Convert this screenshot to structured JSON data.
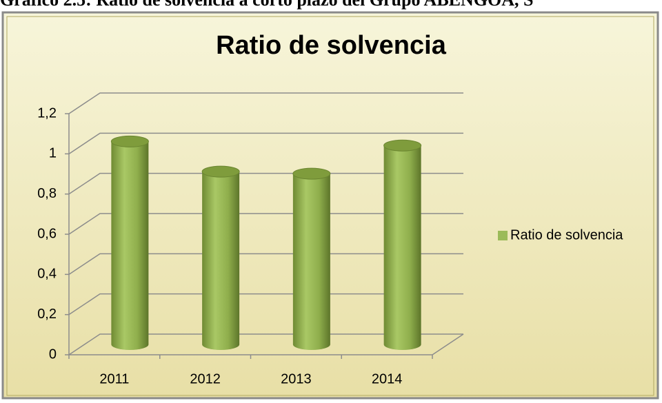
{
  "caption": "Gráfico 2.5: Ratio de solvencia a corto plazo del Grupo ABENGOA, S",
  "chart_data": {
    "type": "bar3d",
    "title": "Ratio de solvencia",
    "categories": [
      "2011",
      "2012",
      "2013",
      "2014"
    ],
    "series": [
      {
        "name": "Ratio de solvencia",
        "color": "#9bbb59",
        "values": [
          1.01,
          0.86,
          0.85,
          0.99
        ]
      }
    ],
    "ylim": [
      0,
      1.2
    ],
    "yticks": [
      0,
      {
        "value": 0.2,
        "label": "0,2"
      },
      {
        "value": 0.4,
        "label": "0,4"
      },
      {
        "value": 0.6,
        "label": "0,6"
      },
      {
        "value": 0.8,
        "label": "0,8"
      },
      1,
      {
        "value": 1.2,
        "label": "1,2"
      }
    ],
    "grid": true,
    "legend": "right"
  }
}
